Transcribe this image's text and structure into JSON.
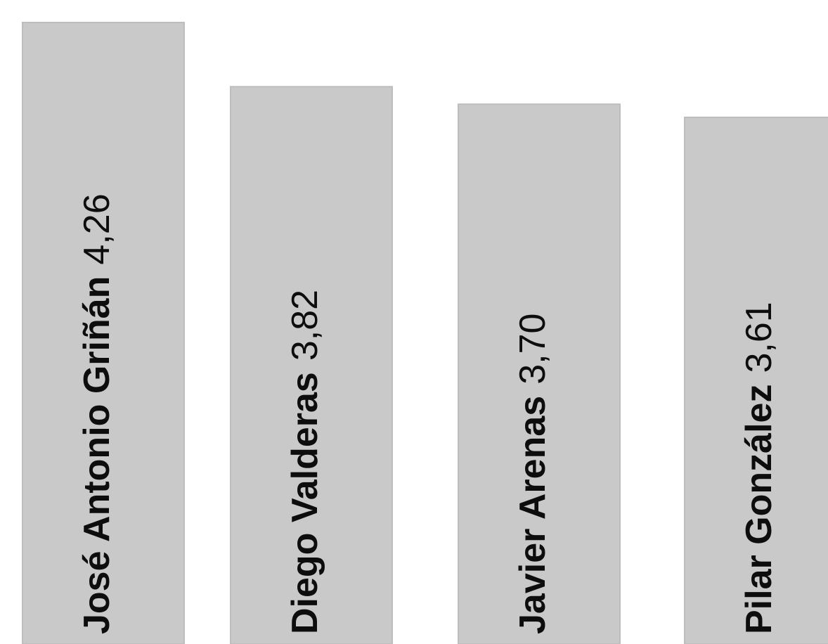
{
  "chart_data": {
    "type": "bar",
    "orientation": "vertical",
    "categories": [
      "José Antonio Griñán",
      "Diego Valderas",
      "Javier Arenas",
      "Pilar González"
    ],
    "values": [
      4.26,
      3.82,
      3.7,
      3.61
    ],
    "value_labels": [
      "4,26",
      "3,82",
      "3,70",
      "3,61"
    ],
    "title": "",
    "xlabel": "",
    "ylabel": "",
    "ylim": [
      0,
      4.5
    ],
    "grid": false,
    "legend": "none",
    "colors": {
      "bar": "#c9c9c9",
      "bar_edge": "#bdbdbd",
      "text": "#0d0d0d"
    }
  }
}
